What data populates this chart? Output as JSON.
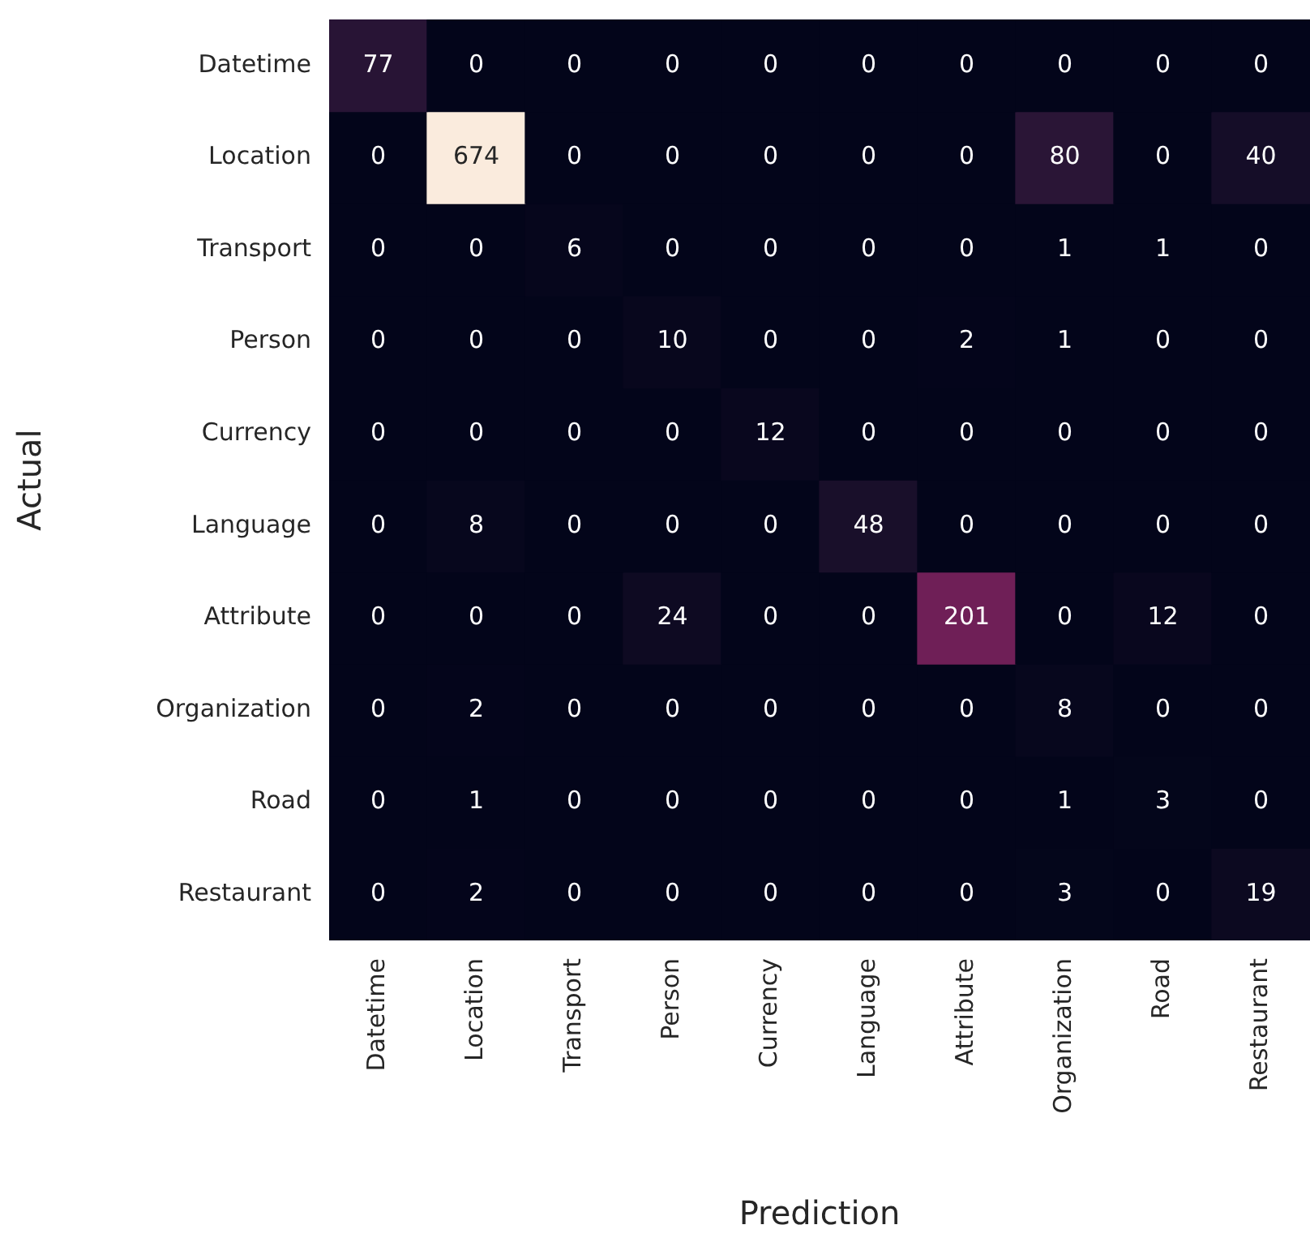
{
  "chart_data": {
    "type": "heatmap",
    "xlabel": "Prediction",
    "ylabel": "Actual",
    "data_labels": true,
    "categories": [
      "Datetime",
      "Location",
      "Transport",
      "Person",
      "Currency",
      "Language",
      "Attribute",
      "Organization",
      "Road",
      "Restaurant"
    ],
    "y_categories": [
      "Datetime",
      "Location",
      "Transport",
      "Person",
      "Currency",
      "Language",
      "Attribute",
      "Organization",
      "Road",
      "Restaurant"
    ],
    "cells": [
      [
        77,
        0,
        0,
        0,
        0,
        0,
        0,
        0,
        0,
        0
      ],
      [
        0,
        674,
        0,
        0,
        0,
        0,
        0,
        80,
        0,
        40
      ],
      [
        0,
        0,
        6,
        0,
        0,
        0,
        0,
        1,
        1,
        0
      ],
      [
        0,
        0,
        0,
        10,
        0,
        0,
        2,
        1,
        0,
        0
      ],
      [
        0,
        0,
        0,
        0,
        12,
        0,
        0,
        0,
        0,
        0
      ],
      [
        0,
        8,
        0,
        0,
        0,
        48,
        0,
        0,
        0,
        0
      ],
      [
        0,
        0,
        0,
        24,
        0,
        0,
        201,
        0,
        12,
        0
      ],
      [
        0,
        2,
        0,
        0,
        0,
        0,
        0,
        8,
        0,
        0
      ],
      [
        0,
        1,
        0,
        0,
        0,
        0,
        0,
        1,
        3,
        0
      ],
      [
        0,
        2,
        0,
        0,
        0,
        0,
        0,
        3,
        0,
        19
      ]
    ]
  }
}
